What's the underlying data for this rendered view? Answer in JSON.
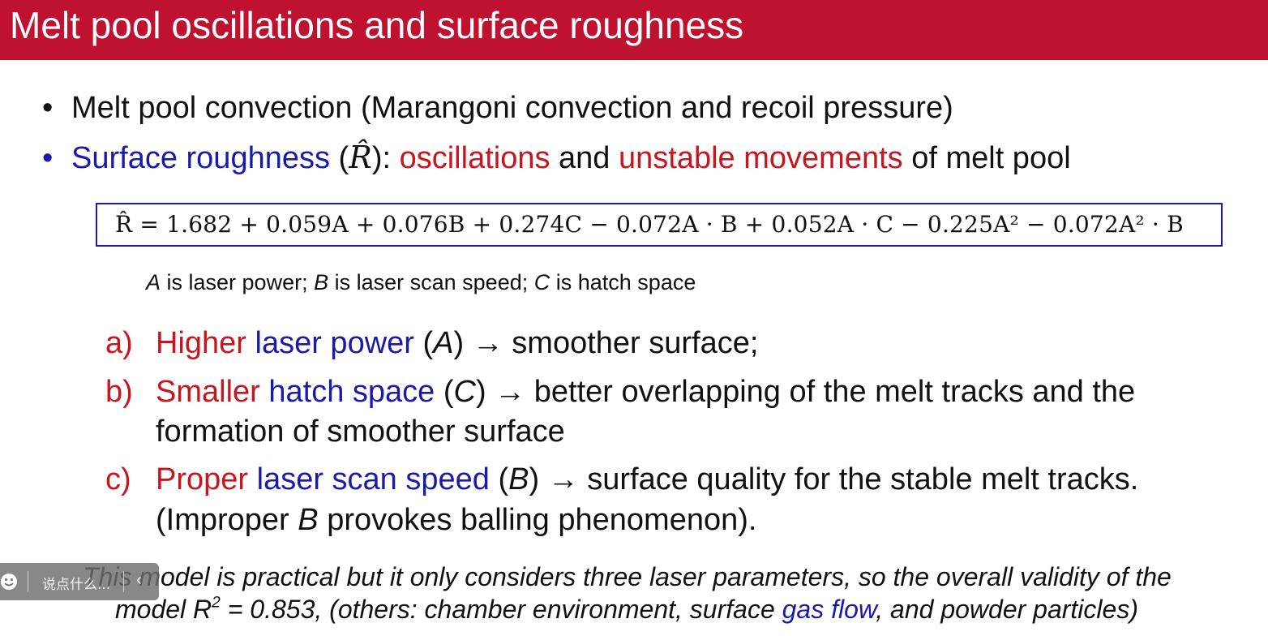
{
  "slide": {
    "title": "Melt pool oscillations and surface roughness",
    "bullet1": "Melt pool convection (Marangoni convection and recoil pressure)",
    "bullet2": {
      "term": "Surface roughness",
      "symbol_open": " (",
      "symbol": "R̂",
      "symbol_close": "): ",
      "kw1": "oscillations",
      "mid": " and ",
      "kw2": "unstable movements",
      "end": " of melt pool"
    },
    "formula": "R̂ = 1.682 + 0.059A + 0.076B + 0.274C − 0.072A · B + 0.052A · C − 0.225A² − 0.072A² · B",
    "variables": {
      "a": "A",
      "a_text": " is laser power; ",
      "b": "B",
      "b_text": " is laser scan speed; ",
      "c": "C",
      "c_text": " is hatch space"
    },
    "items": [
      {
        "label": "a)",
        "kw_red": "Higher",
        "kw_blue": " laser power",
        "open": " (",
        "var": "A",
        "rest": ") → smoother surface;"
      },
      {
        "label": "b)",
        "kw_red": "Smaller",
        "kw_blue": " hatch space",
        "open": " (",
        "var": "C",
        "rest": ") → better overlapping of the melt tracks and the",
        "cont": "formation of smoother surface"
      },
      {
        "label": "c)",
        "kw_red": "Proper",
        "kw_blue": " laser scan speed",
        "open": " (",
        "var": "B",
        "rest": ") → surface quality for the stable melt tracks.",
        "cont_pre": "(Improper ",
        "cont_var": "B",
        "cont_post": " provokes balling phenomenon)."
      }
    ],
    "note": {
      "line1": "This model is practical but it only considers three laser parameters, so the overall validity of the",
      "line2_pre": "model R",
      "line2_sup": "2",
      "line2_mid": " = 0.853, (others: chamber environment, surface ",
      "line2_blue": "gas flow",
      "line2_post": ", and powder particles)"
    }
  },
  "overlay": {
    "placeholder": "说点什么...",
    "icon": "smiley-icon",
    "arrow": "‹"
  },
  "colors": {
    "title_bg": "#bf1230",
    "blue": "#1a1aaa",
    "red": "#c8151e"
  }
}
